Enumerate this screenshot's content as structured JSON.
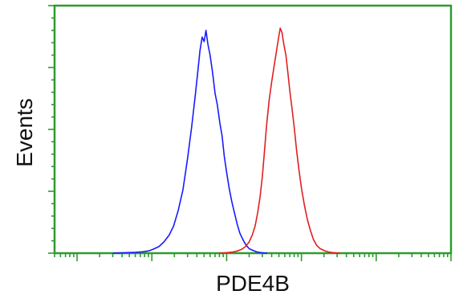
{
  "chart_data": {
    "type": "line",
    "title": "",
    "xlabel": "PDE4B",
    "ylabel": "Events",
    "x_scale": "log",
    "xlim": [
      0.05,
      10000
    ],
    "ylim": [
      0,
      1.1
    ],
    "grid": false,
    "legend": "none",
    "colors": {
      "axis": "#2e9b2e",
      "blue": "#1a1aff",
      "red": "#e02020"
    },
    "series": [
      {
        "color": "#1a1aff",
        "x": [
          0.3,
          0.45,
          0.6,
          0.75,
          0.9,
          1.05,
          1.25,
          1.45,
          1.7,
          1.95,
          2.25,
          2.6,
          3.0,
          3.4,
          3.8,
          4.1,
          4.4,
          4.7,
          5.0,
          5.3,
          5.6,
          6.0,
          6.5,
          7.0,
          7.5,
          8.1,
          8.7,
          9.3,
          10.0,
          10.8,
          11.7,
          12.7,
          13.8,
          15.0,
          16.5,
          18.2,
          20.0,
          22.5,
          25.0,
          28.0,
          31.0,
          35.0
        ],
        "y": [
          0.0,
          0.002,
          0.004,
          0.006,
          0.01,
          0.018,
          0.03,
          0.05,
          0.08,
          0.12,
          0.19,
          0.28,
          0.42,
          0.56,
          0.7,
          0.8,
          0.9,
          0.96,
          0.94,
          0.99,
          0.93,
          0.88,
          0.8,
          0.71,
          0.66,
          0.58,
          0.52,
          0.43,
          0.36,
          0.29,
          0.23,
          0.18,
          0.13,
          0.09,
          0.06,
          0.035,
          0.02,
          0.012,
          0.006,
          0.003,
          0.001,
          0.0
        ]
      },
      {
        "color": "#e02020",
        "x": [
          8.0,
          10.0,
          12.0,
          14.0,
          16.0,
          18.0,
          20.0,
          22.0,
          24.0,
          26.0,
          28.0,
          30.0,
          32.0,
          34.0,
          37.0,
          40.0,
          43.0,
          46.0,
          49.0,
          52.0,
          55.0,
          58.0,
          62.0,
          66.0,
          70.0,
          75.0,
          80.0,
          86.0,
          92.0,
          100.0,
          110.0,
          120.0,
          132.0,
          145.0,
          160.0,
          178.0,
          200.0,
          225.0,
          255.0,
          290.0,
          330.0
        ],
        "y": [
          0.0,
          0.002,
          0.005,
          0.01,
          0.018,
          0.03,
          0.05,
          0.08,
          0.12,
          0.18,
          0.25,
          0.34,
          0.45,
          0.56,
          0.68,
          0.76,
          0.83,
          0.89,
          0.95,
          1.0,
          0.98,
          0.93,
          0.88,
          0.8,
          0.72,
          0.64,
          0.56,
          0.46,
          0.38,
          0.29,
          0.21,
          0.15,
          0.1,
          0.06,
          0.035,
          0.02,
          0.012,
          0.006,
          0.003,
          0.001,
          0.0
        ]
      }
    ]
  }
}
